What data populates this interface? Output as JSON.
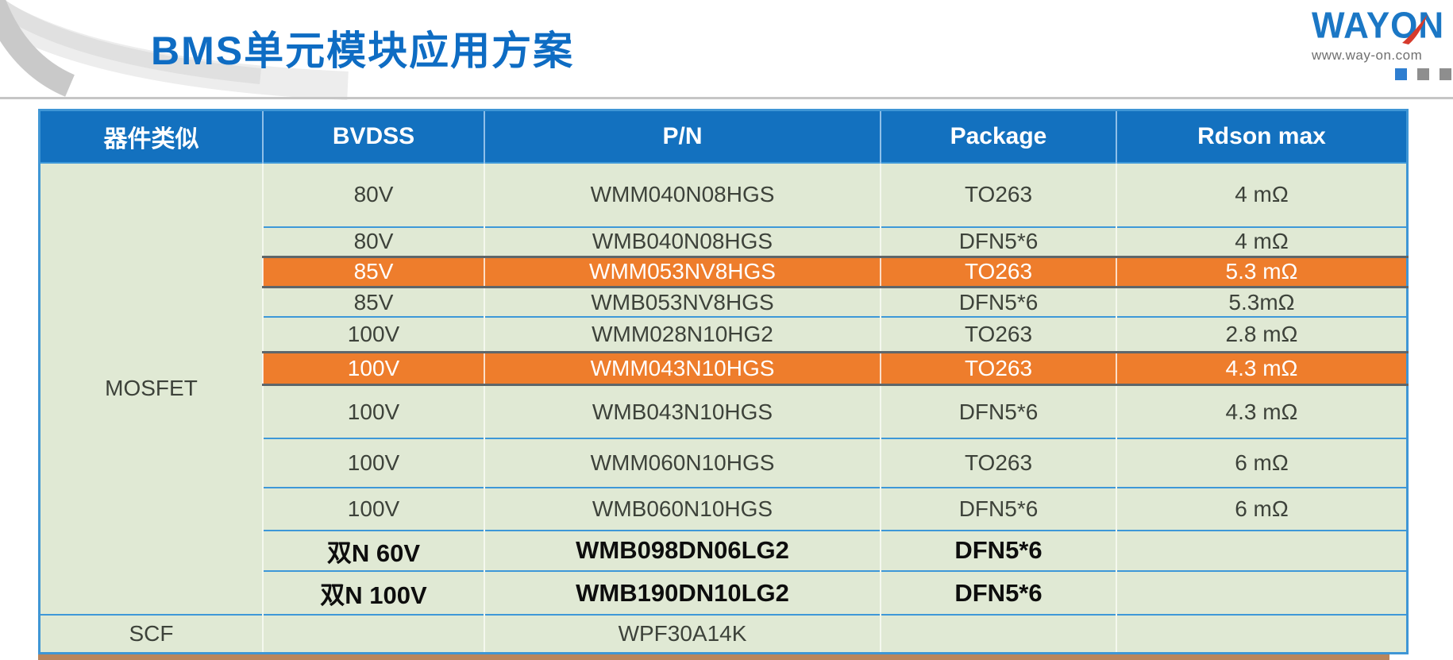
{
  "slide": {
    "title": "BMS单元模块应用方案",
    "logo": {
      "wordmark": "WAYON",
      "website": "www.way-on.com"
    }
  },
  "table": {
    "headers": [
      "器件类似",
      "BVDSS",
      "P/N",
      "Package",
      "Rdson max"
    ],
    "groups": [
      {
        "category": "MOSFET",
        "rows": [
          {
            "bvdss": "80V",
            "pn": "WMM040N08HGS",
            "package": "TO263",
            "rdson": "4 mΩ",
            "highlight": false,
            "emphasis": false
          },
          {
            "bvdss": "80V",
            "pn": "WMB040N08HGS",
            "package": "DFN5*6",
            "rdson": "4 mΩ",
            "highlight": false,
            "emphasis": false
          },
          {
            "bvdss": "85V",
            "pn": "WMM053NV8HGS",
            "package": "TO263",
            "rdson": "5.3 mΩ",
            "highlight": true,
            "emphasis": false
          },
          {
            "bvdss": "85V",
            "pn": "WMB053NV8HGS",
            "package": "DFN5*6",
            "rdson": "5.3mΩ",
            "highlight": false,
            "emphasis": false
          },
          {
            "bvdss": "100V",
            "pn": "WMM028N10HG2",
            "package": "TO263",
            "rdson": "2.8 mΩ",
            "highlight": false,
            "emphasis": false
          },
          {
            "bvdss": "100V",
            "pn": "WMM043N10HGS",
            "package": "TO263",
            "rdson": "4.3 mΩ",
            "highlight": true,
            "emphasis": false
          },
          {
            "bvdss": "100V",
            "pn": "WMB043N10HGS",
            "package": "DFN5*6",
            "rdson": "4.3 mΩ",
            "highlight": false,
            "emphasis": false
          },
          {
            "bvdss": "100V",
            "pn": "WMM060N10HGS",
            "package": "TO263",
            "rdson": "6 mΩ",
            "highlight": false,
            "emphasis": false
          },
          {
            "bvdss": "100V",
            "pn": "WMB060N10HGS",
            "package": "DFN5*6",
            "rdson": "6 mΩ",
            "highlight": false,
            "emphasis": false
          },
          {
            "bvdss": "双N 60V",
            "pn": "WMB098DN06LG2",
            "package": "DFN5*6",
            "rdson": "",
            "highlight": false,
            "emphasis": true
          },
          {
            "bvdss": "双N 100V",
            "pn": "WMB190DN10LG2",
            "package": "DFN5*6",
            "rdson": "",
            "highlight": false,
            "emphasis": true
          }
        ]
      },
      {
        "category": "SCF",
        "rows": [
          {
            "bvdss": "",
            "pn": "WPF30A14K",
            "package": "",
            "rdson": "",
            "highlight": false,
            "emphasis": false
          }
        ]
      }
    ]
  },
  "colors": {
    "header_blue": "#1371bf",
    "row_green": "#e0e9d4",
    "highlight_orange": "#ee7d2c",
    "divider_blue": "#3e98d8",
    "title_blue": "#0e6cc3",
    "logo_blue": "#1b77c5",
    "logo_red": "#d63a2c"
  }
}
